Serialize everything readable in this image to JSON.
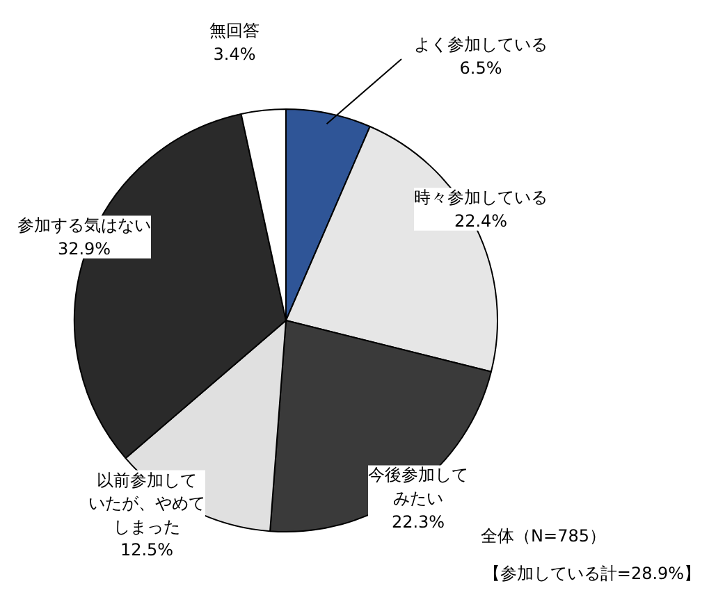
{
  "chart_data": {
    "type": "pie",
    "categories": [
      "よく参加している",
      "時々参加している",
      "今後参加してみたい",
      "以前参加していたが、やめてしまった",
      "参加する気はない",
      "無回答"
    ],
    "values": [
      6.5,
      22.4,
      22.3,
      12.5,
      32.9,
      3.4
    ],
    "colors": [
      "#2f5597",
      "#e6e6e6",
      "#3a3a3a",
      "#e0e0e0",
      "#2a2a2a",
      "#ffffff"
    ],
    "value_labels": [
      "6.5%",
      "22.4%",
      "22.3%",
      "12.5%",
      "32.9%",
      "3.4%"
    ],
    "annotations": [
      "全体（N=785）",
      "【参加している計=28.9%】"
    ]
  }
}
